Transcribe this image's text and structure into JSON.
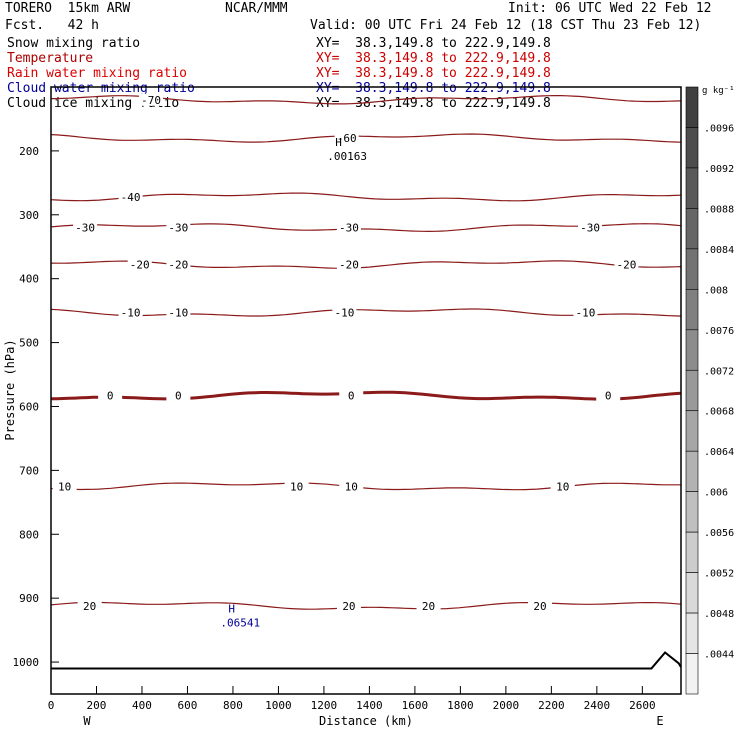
{
  "header": {
    "model": "TORERO  15km ARW",
    "org": "NCAR/MMM",
    "init": "Init: 06 UTC Wed 22 Feb 12",
    "fcst": "Fcst.   42 h",
    "valid": "Valid: 00 UTC Fri 24 Feb 12 (18 CST Thu 23 Feb 12)"
  },
  "fields": [
    {
      "name": "Snow mixing ratio",
      "xy": "XY=  38.3,149.8 to 222.9,149.8",
      "color": "#000000",
      "xy_color": "#000000"
    },
    {
      "name": "Temperature",
      "xy": "XY=  38.3,149.8 to 222.9,149.8",
      "color": "#aa0000",
      "xy_color": "#cc0000"
    },
    {
      "name": "Rain water mixing ratio",
      "xy": "XY=  38.3,149.8 to 222.9,149.8",
      "color": "#dd0000",
      "xy_color": "#cc0000"
    },
    {
      "name": "Cloud water mixing ratio",
      "xy": "XY=  38.3,149.8 to 222.9,149.8",
      "color": "#000099",
      "xy_color": "#000099"
    },
    {
      "name": "Cloud ice mixing ratio",
      "xy": "XY=  38.3,149.8 to 222.9,149.8",
      "color": "#000000",
      "xy_color": "#000000"
    }
  ],
  "chart_data": {
    "type": "line",
    "xlabel": "Distance (km)",
    "ylabel": "Pressure (hPa)",
    "x_ticks": [
      0,
      200,
      400,
      600,
      800,
      1000,
      1200,
      1400,
      1600,
      1800,
      2000,
      2200,
      2400,
      2600
    ],
    "xlim": [
      0,
      2770
    ],
    "y_ticks": [
      200,
      300,
      400,
      500,
      600,
      700,
      800,
      900,
      1000
    ],
    "ylim_top": 100,
    "ylim_bottom": 1050,
    "x_end_labels": {
      "left": "W",
      "right": "E"
    },
    "colorbar": {
      "unit": "g kg⁻¹",
      "labels": [
        ".0096",
        ".0092",
        ".0088",
        ".0084",
        ".008",
        ".0076",
        ".0072",
        ".0068",
        ".0064",
        ".006",
        ".0056",
        ".0052",
        ".0048",
        ".0044"
      ],
      "dark_color": "#404040",
      "light_color": "#f2f2f2"
    },
    "temperature_contours": {
      "color": "#8b1a1a",
      "levels": [
        {
          "value": -70,
          "pressure": 120,
          "labels": [
            {
              "text": "-70",
              "x": 440
            }
          ]
        },
        {
          "value": -60,
          "pressure": 180,
          "labels": [
            {
              "text": "-60",
              "x": 1300
            }
          ]
        },
        {
          "value": -40,
          "pressure": 272,
          "labels": [
            {
              "text": "-40",
              "x": 350
            }
          ]
        },
        {
          "value": -30,
          "pressure": 320,
          "labels": [
            {
              "text": "-30",
              "x": 150
            },
            {
              "text": "-30",
              "x": 560
            },
            {
              "text": "-30",
              "x": 1310
            },
            {
              "text": "-30",
              "x": 2370
            }
          ]
        },
        {
          "value": -20,
          "pressure": 378,
          "labels": [
            {
              "text": "-20",
              "x": 390
            },
            {
              "text": "-20",
              "x": 560
            },
            {
              "text": "-20",
              "x": 1310
            },
            {
              "text": "-20",
              "x": 2530
            }
          ]
        },
        {
          "value": -10,
          "pressure": 453,
          "labels": [
            {
              "text": "-10",
              "x": 350
            },
            {
              "text": "-10",
              "x": 560
            },
            {
              "text": "-10",
              "x": 1290
            },
            {
              "text": "-10",
              "x": 2350
            }
          ]
        },
        {
          "value": 0,
          "pressure": 583,
          "bold": true,
          "labels": [
            {
              "text": "0",
              "x": 260
            },
            {
              "text": "0",
              "x": 560
            },
            {
              "text": "0",
              "x": 1320
            },
            {
              "text": "0",
              "x": 2450
            }
          ]
        },
        {
          "value": 10,
          "pressure": 725,
          "labels": [
            {
              "text": "10",
              "x": 60
            },
            {
              "text": "10",
              "x": 1080
            },
            {
              "text": "10",
              "x": 1320
            },
            {
              "text": "10",
              "x": 2250
            }
          ]
        },
        {
          "value": 20,
          "pressure": 912,
          "labels": [
            {
              "text": "20",
              "x": 170
            },
            {
              "text": "20",
              "x": 1310
            },
            {
              "text": "20",
              "x": 1660
            },
            {
              "text": "20",
              "x": 2150
            }
          ]
        }
      ]
    },
    "annotations": [
      {
        "marker": "H",
        "value": ".00163",
        "x": 1250,
        "pressure": 205,
        "color": "#000000"
      },
      {
        "marker": "H",
        "value": ".06541",
        "x": 780,
        "pressure": 935,
        "color": "#000099"
      }
    ]
  }
}
